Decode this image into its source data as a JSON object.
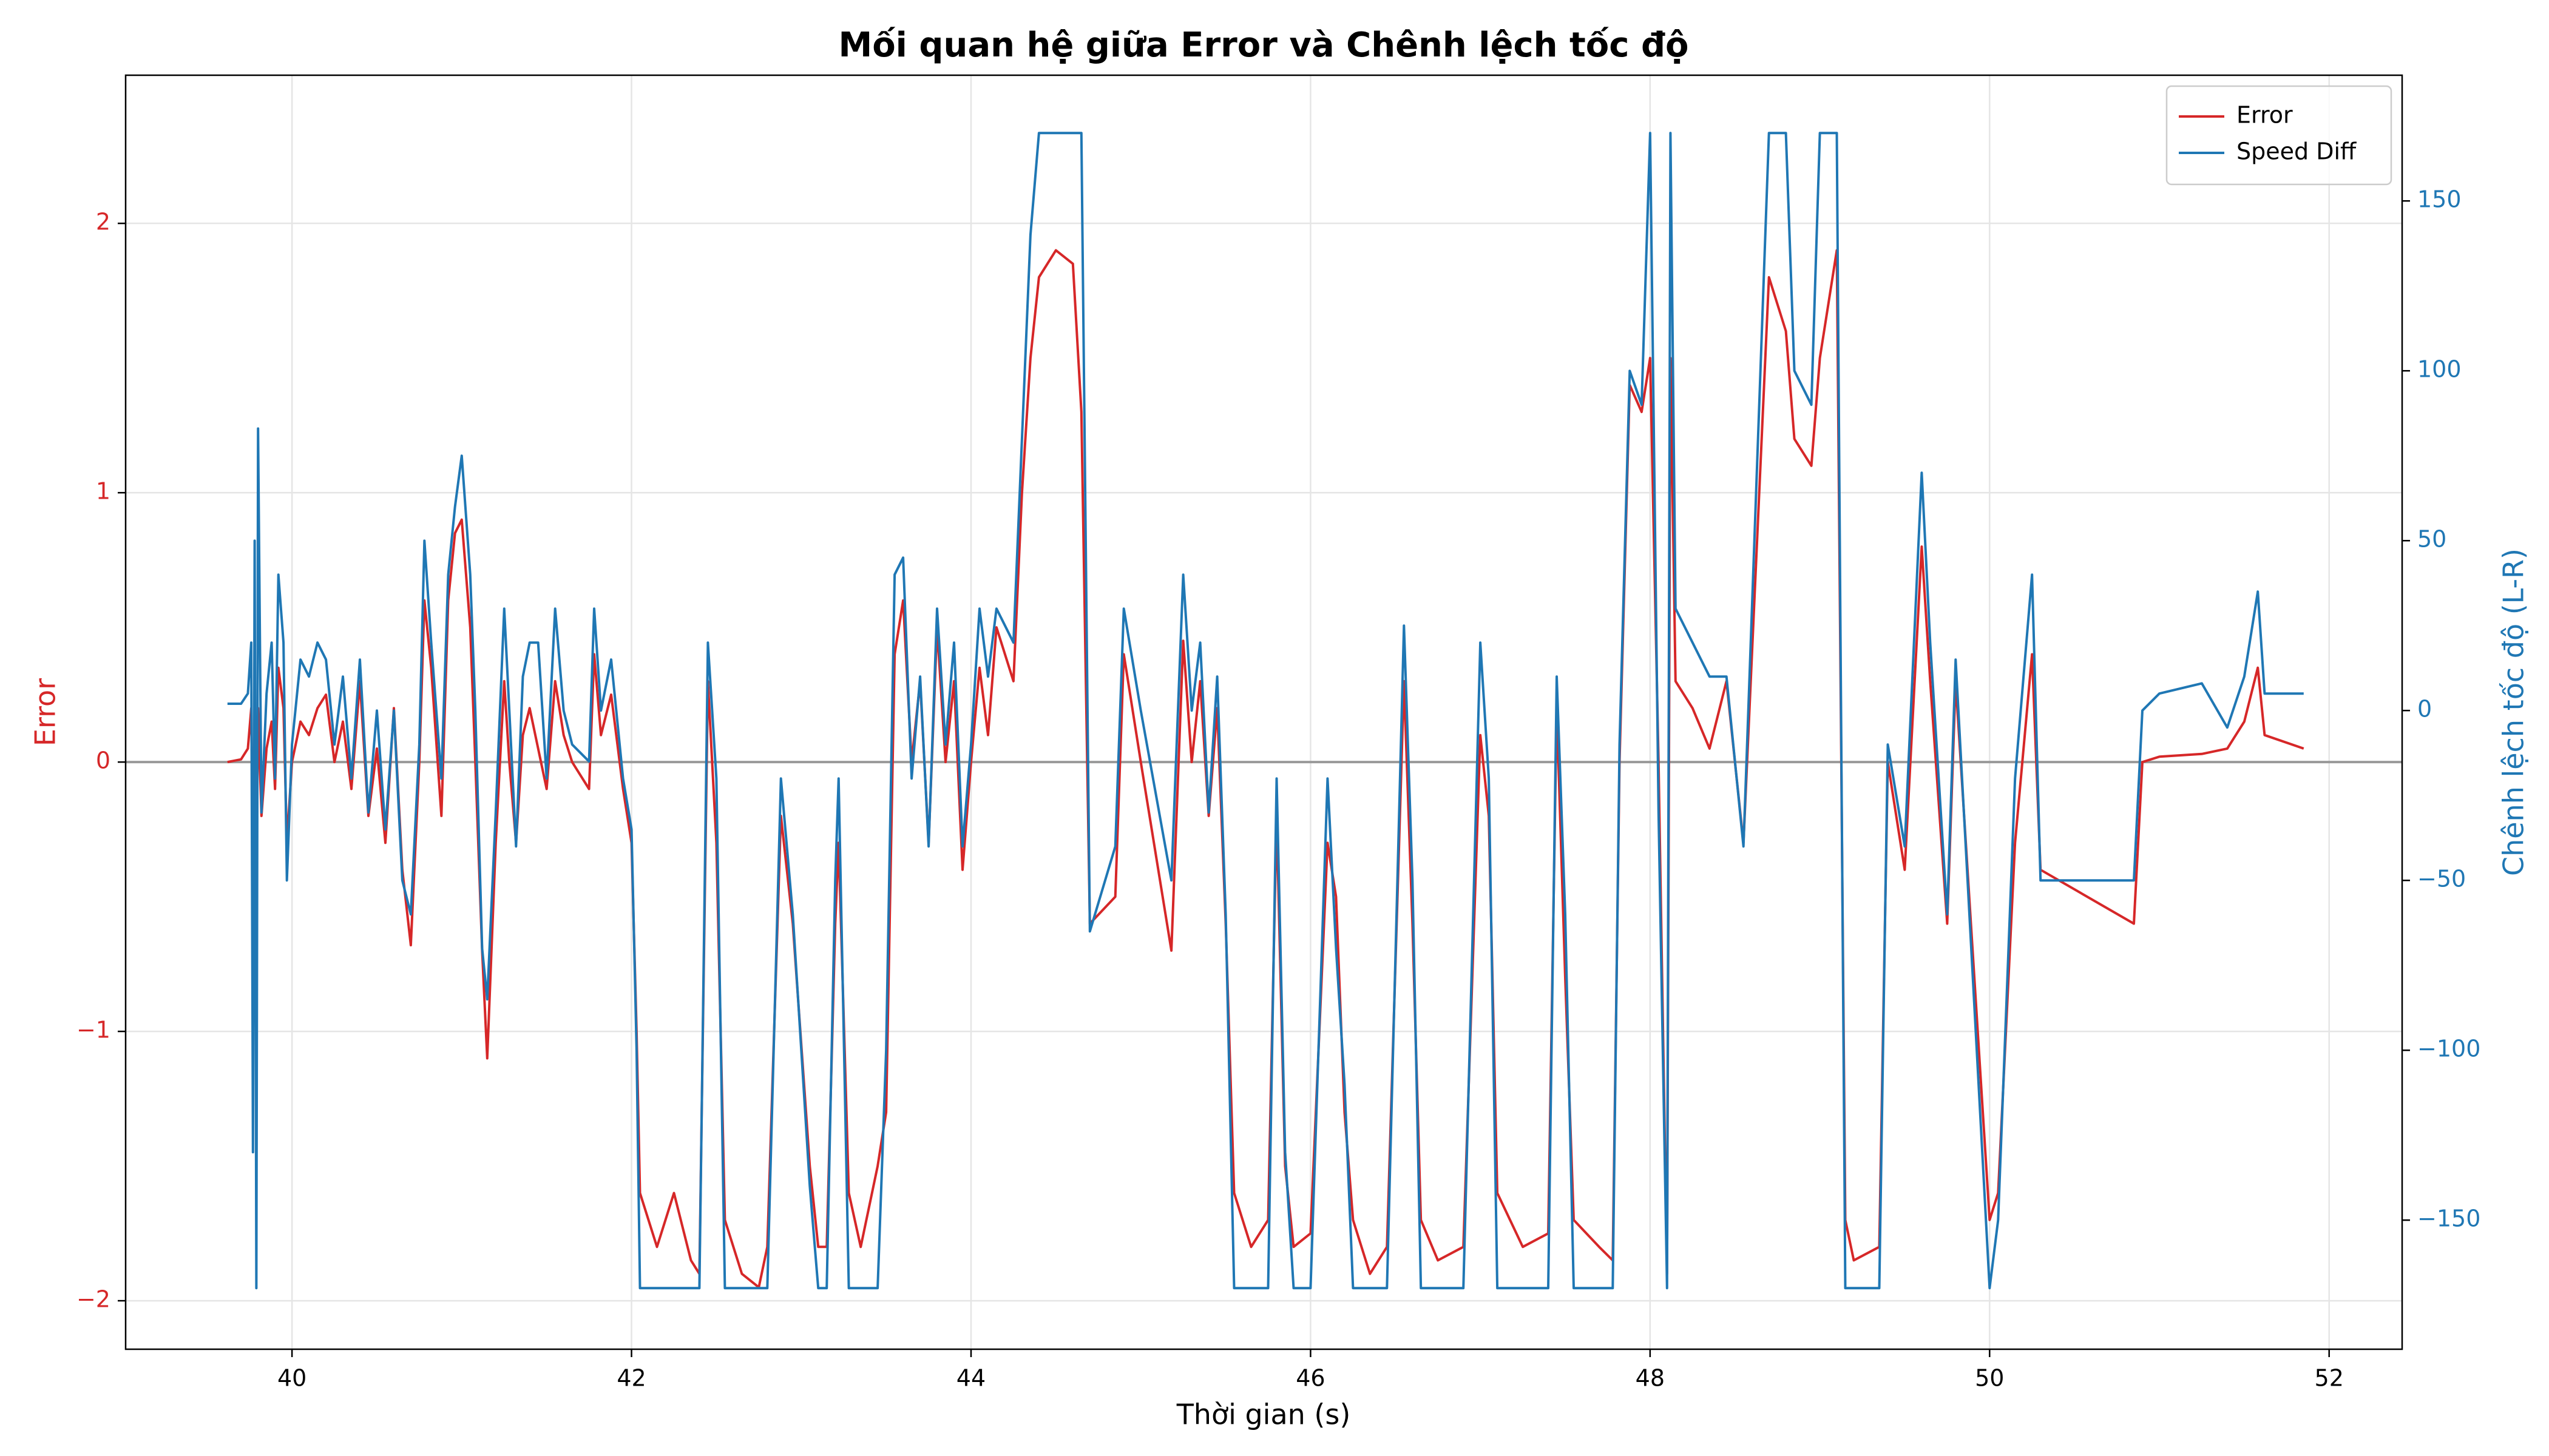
{
  "chart_data": {
    "type": "line",
    "title": "Mối quan hệ giữa Error và Chênh lệch tốc độ",
    "xlabel": "Thời gian (s)",
    "ylabel": "Error",
    "y2label": "Chênh lệch tốc độ (L-R)",
    "xlim": [
      39.02,
      52.43
    ],
    "xticks": [
      40,
      42,
      44,
      46,
      48,
      50,
      52
    ],
    "ylim": [
      -2.18,
      2.55
    ],
    "yticks": [
      {
        "value": -2,
        "label": "−2"
      },
      {
        "value": -1,
        "label": "−1"
      },
      0,
      1,
      2
    ],
    "y2lim": [
      -188,
      187
    ],
    "y2ticks": [
      {
        "value": -150,
        "label": "−150"
      },
      {
        "value": -100,
        "label": "−100"
      },
      {
        "value": -50,
        "label": "−50"
      },
      0,
      50,
      100,
      150
    ],
    "grid": true,
    "hline": 0,
    "legend": "upper right",
    "x": [
      39.62,
      39.7,
      39.74,
      39.76,
      39.77,
      39.78,
      39.79,
      39.8,
      39.82,
      39.85,
      39.88,
      39.9,
      39.92,
      39.95,
      39.97,
      40.0,
      40.05,
      40.1,
      40.15,
      40.2,
      40.25,
      40.3,
      40.35,
      40.4,
      40.45,
      40.5,
      40.55,
      40.6,
      40.65,
      40.7,
      40.75,
      40.78,
      40.82,
      40.88,
      40.92,
      40.96,
      41.0,
      41.05,
      41.08,
      41.12,
      41.15,
      41.2,
      41.25,
      41.28,
      41.32,
      41.36,
      41.4,
      41.45,
      41.5,
      41.55,
      41.6,
      41.65,
      41.75,
      41.78,
      41.82,
      41.88,
      41.95,
      42.0,
      42.03,
      42.05,
      42.15,
      42.25,
      42.35,
      42.4,
      42.45,
      42.5,
      42.55,
      42.65,
      42.75,
      42.8,
      42.88,
      42.95,
      43.05,
      43.1,
      43.15,
      43.2,
      43.22,
      43.28,
      43.35,
      43.45,
      43.5,
      43.55,
      43.6,
      43.65,
      43.7,
      43.75,
      43.8,
      43.85,
      43.9,
      43.95,
      44.0,
      44.05,
      44.1,
      44.15,
      44.25,
      44.3,
      44.35,
      44.4,
      44.5,
      44.6,
      44.65,
      44.7,
      44.85,
      44.9,
      45.0,
      45.18,
      45.25,
      45.3,
      45.35,
      45.4,
      45.45,
      45.5,
      45.55,
      45.65,
      45.75,
      45.8,
      45.85,
      45.9,
      46.0,
      46.1,
      46.15,
      46.2,
      46.25,
      46.35,
      46.45,
      46.55,
      46.6,
      46.65,
      46.75,
      46.9,
      47.0,
      47.05,
      47.1,
      47.25,
      47.4,
      47.45,
      47.5,
      47.55,
      47.7,
      47.78,
      47.82,
      47.88,
      47.95,
      48.0,
      48.05,
      48.1,
      48.12,
      48.15,
      48.25,
      48.35,
      48.45,
      48.55,
      48.7,
      48.8,
      48.85,
      48.95,
      49.0,
      49.1,
      49.15,
      49.2,
      49.35,
      49.4,
      49.5,
      49.6,
      49.65,
      49.75,
      49.8,
      50.0,
      50.05,
      50.15,
      50.25,
      50.3,
      50.85,
      50.9,
      51.0,
      51.25,
      51.4,
      51.5,
      51.58,
      51.62,
      51.85
    ],
    "series": [
      {
        "name": "Error",
        "color": "#d62728",
        "axis": "y",
        "values": [
          0.0,
          0.01,
          0.05,
          0.2,
          -0.3,
          0.1,
          -0.5,
          0.2,
          -0.2,
          0.05,
          0.15,
          -0.1,
          0.35,
          0.2,
          -0.3,
          0.0,
          0.15,
          0.1,
          0.2,
          0.25,
          0.0,
          0.15,
          -0.1,
          0.3,
          -0.2,
          0.05,
          -0.3,
          0.2,
          -0.4,
          -0.68,
          0.0,
          0.6,
          0.35,
          -0.2,
          0.6,
          0.85,
          0.9,
          0.5,
          0.0,
          -0.7,
          -1.1,
          -0.3,
          0.3,
          0.0,
          -0.3,
          0.1,
          0.2,
          0.05,
          -0.1,
          0.3,
          0.1,
          0.0,
          -0.1,
          0.4,
          0.1,
          0.25,
          -0.1,
          -0.3,
          -1.0,
          -1.6,
          -1.8,
          -1.6,
          -1.85,
          -1.9,
          0.3,
          -0.3,
          -1.7,
          -1.9,
          -1.95,
          -1.8,
          -0.2,
          -0.6,
          -1.5,
          -1.8,
          -1.8,
          -0.6,
          -0.3,
          -1.6,
          -1.8,
          -1.5,
          -1.3,
          0.4,
          0.6,
          0.0,
          0.3,
          -0.3,
          0.5,
          0.0,
          0.3,
          -0.4,
          0.0,
          0.35,
          0.1,
          0.5,
          0.3,
          1.0,
          1.5,
          1.8,
          1.9,
          1.85,
          1.3,
          -0.6,
          -0.5,
          0.4,
          0.0,
          -0.7,
          0.45,
          0.0,
          0.3,
          -0.2,
          0.2,
          -0.6,
          -1.6,
          -1.8,
          -1.7,
          -0.2,
          -1.5,
          -1.8,
          -1.75,
          -0.3,
          -0.5,
          -1.3,
          -1.7,
          -1.9,
          -1.8,
          0.3,
          -0.6,
          -1.7,
          -1.85,
          -1.8,
          0.1,
          -0.2,
          -1.6,
          -1.8,
          -1.75,
          0.2,
          -0.8,
          -1.7,
          -1.8,
          -1.85,
          0.0,
          1.4,
          1.3,
          1.5,
          0.0,
          -1.9,
          1.5,
          0.3,
          0.2,
          0.05,
          0.3,
          -0.3,
          1.8,
          1.6,
          1.2,
          1.1,
          1.5,
          1.9,
          -1.7,
          -1.85,
          -1.8,
          0.0,
          -0.4,
          0.8,
          0.3,
          -0.6,
          0.3,
          -1.7,
          -1.6,
          -0.3,
          0.4,
          -0.4,
          -0.6,
          0.0,
          0.02,
          0.03,
          0.05,
          0.15,
          0.35,
          0.1,
          0.05
        ]
      },
      {
        "name": "Speed Diff",
        "color": "#1f77b4",
        "axis": "y2",
        "values": [
          2,
          2,
          5,
          20,
          -130,
          50,
          -170,
          83,
          -30,
          5,
          20,
          -20,
          40,
          20,
          -50,
          -10,
          15,
          10,
          20,
          15,
          -10,
          10,
          -20,
          15,
          -30,
          0,
          -35,
          0,
          -50,
          -60,
          -10,
          50,
          20,
          -20,
          40,
          60,
          75,
          40,
          0,
          -70,
          -85,
          -30,
          30,
          0,
          -40,
          10,
          20,
          20,
          -20,
          30,
          0,
          -10,
          -15,
          30,
          0,
          15,
          -20,
          -35,
          -100,
          -170,
          -170,
          -170,
          -170,
          -170,
          20,
          -20,
          -170,
          -170,
          -170,
          -170,
          -20,
          -60,
          -140,
          -170,
          -170,
          -50,
          -20,
          -170,
          -170,
          -170,
          -100,
          40,
          45,
          -20,
          10,
          -40,
          30,
          -10,
          20,
          -40,
          -10,
          30,
          10,
          30,
          20,
          80,
          140,
          170,
          170,
          170,
          170,
          -65,
          -40,
          30,
          0,
          -50,
          40,
          0,
          20,
          -30,
          10,
          -60,
          -170,
          -170,
          -170,
          -20,
          -130,
          -170,
          -170,
          -20,
          -70,
          -110,
          -170,
          -170,
          -170,
          25,
          -50,
          -170,
          -170,
          -170,
          20,
          -20,
          -170,
          -170,
          -170,
          10,
          -60,
          -170,
          -170,
          -170,
          -10,
          100,
          90,
          170,
          -30,
          -170,
          170,
          30,
          20,
          10,
          10,
          -40,
          170,
          170,
          100,
          90,
          170,
          170,
          -170,
          -170,
          -170,
          -10,
          -40,
          70,
          20,
          -60,
          15,
          -170,
          -150,
          -20,
          40,
          -50,
          -50,
          0,
          5,
          8,
          -5,
          10,
          35,
          5,
          5
        ]
      }
    ]
  }
}
